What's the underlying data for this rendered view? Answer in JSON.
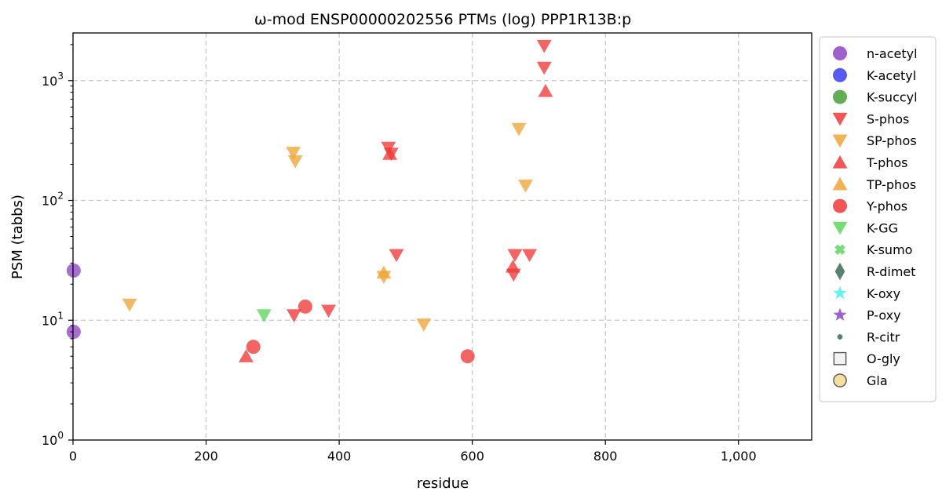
{
  "chart_data": {
    "type": "scatter",
    "title": "ω-mod ENSP00000202556 PTMs (log) PPP1R13B:p",
    "xlabel": "residue",
    "ylabel": "PSM (tabbs)",
    "xlim": [
      0,
      1110
    ],
    "ylim": [
      1,
      2500
    ],
    "yscale": "log",
    "x_ticks": [
      0,
      200,
      400,
      600,
      800,
      1000
    ],
    "x_tick_labels": [
      "0",
      "200",
      "400",
      "600",
      "800",
      "1,000"
    ],
    "y_ticks": [
      1,
      10,
      100,
      1000
    ],
    "grid": true,
    "legend_position": "outside-right",
    "series": [
      {
        "name": "n-acetyl",
        "marker": "circle",
        "color": "#8e44c4",
        "points": [
          [
            1,
            26
          ],
          [
            1,
            8
          ]
        ]
      },
      {
        "name": "K-acetyl",
        "marker": "circle",
        "color": "#3a3ef0",
        "points": []
      },
      {
        "name": "K-succyl",
        "marker": "circle",
        "color": "#4a9e3a",
        "points": []
      },
      {
        "name": "S-phos",
        "marker": "triangle-down",
        "color": "#f03a3a",
        "points": [
          [
            332,
            11
          ],
          [
            384,
            12
          ],
          [
            474,
            275
          ],
          [
            478,
            245
          ],
          [
            486,
            35
          ],
          [
            662,
            24
          ],
          [
            664,
            35
          ],
          [
            686,
            35
          ],
          [
            708,
            1950
          ],
          [
            708,
            1280
          ]
        ]
      },
      {
        "name": "SP-phos",
        "marker": "triangle-down",
        "color": "#eea53a",
        "points": [
          [
            85,
            13.5
          ],
          [
            331,
            250
          ],
          [
            334,
            212
          ],
          [
            467,
            23
          ],
          [
            527,
            9.2
          ],
          [
            670,
            395
          ],
          [
            680,
            133
          ]
        ]
      },
      {
        "name": "T-phos",
        "marker": "triangle-up",
        "color": "#f03a3a",
        "points": [
          [
            260,
            5
          ],
          [
            476,
            245
          ],
          [
            661,
            28
          ],
          [
            710,
            820
          ]
        ]
      },
      {
        "name": "TP-phos",
        "marker": "triangle-up",
        "color": "#eea53a",
        "points": [
          [
            467,
            25
          ]
        ]
      },
      {
        "name": "Y-phos",
        "marker": "circle",
        "color": "#f03a3a",
        "points": [
          [
            271,
            6
          ],
          [
            349,
            13
          ],
          [
            593,
            5
          ]
        ]
      },
      {
        "name": "K-GG",
        "marker": "triangle-down",
        "color": "#5ed65e",
        "points": [
          [
            287,
            11
          ]
        ]
      },
      {
        "name": "K-sumo",
        "marker": "x",
        "color": "#5ed65e",
        "points": []
      },
      {
        "name": "R-dimet",
        "marker": "diamond",
        "color": "#3d6b55",
        "points": []
      },
      {
        "name": "K-oxy",
        "marker": "star",
        "color": "#4af0f0",
        "points": []
      },
      {
        "name": "P-oxy",
        "marker": "star",
        "color": "#8e44c4",
        "points": []
      },
      {
        "name": "R-citr",
        "marker": "small-circle",
        "color": "#3d6b55",
        "points": []
      },
      {
        "name": "O-gly",
        "marker": "square-open",
        "color": "#555555",
        "points": []
      },
      {
        "name": "Gla",
        "marker": "circle-open",
        "color": "#f5dfa0",
        "points": []
      }
    ]
  }
}
